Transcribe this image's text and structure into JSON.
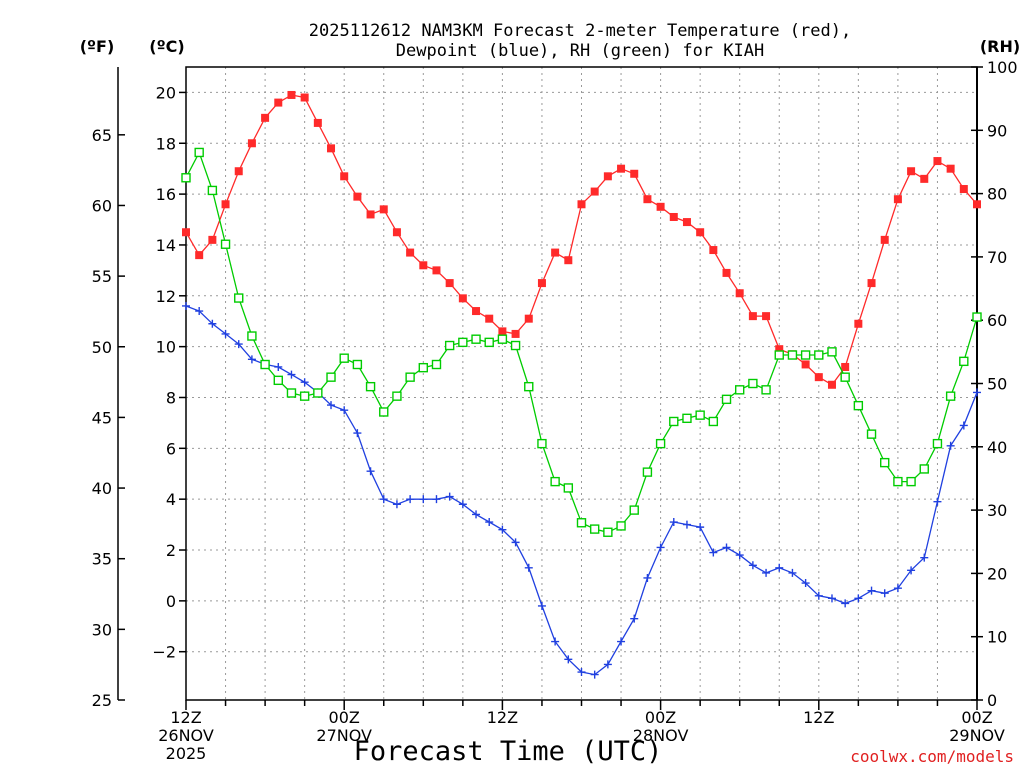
{
  "title_line1": "2025112612 NAM3KM Forecast 2-meter Temperature (red),",
  "title_line2": "Dewpoint (blue), RH (green) for KIAH",
  "unit_f": "(ºF)",
  "unit_c": "(ºC)",
  "unit_rh": "(RH)",
  "xlabel": "Forecast Time (UTC)",
  "credit": "coolwx.com/models",
  "colors": {
    "temp": "#ff2a2a",
    "dewpoint": "#2040e0",
    "rh": "#00cc00",
    "credit": "#e02020"
  },
  "chart_data": {
    "type": "line",
    "title": "2025112612 NAM3KM Forecast 2-meter Temperature (red), Dewpoint (blue), RH (green) for KIAH",
    "xlabel": "Forecast Time (UTC)",
    "x_hours": [
      0,
      1,
      2,
      3,
      4,
      5,
      6,
      7,
      8,
      9,
      10,
      11,
      12,
      13,
      14,
      15,
      16,
      17,
      18,
      19,
      20,
      21,
      22,
      23,
      24,
      25,
      26,
      27,
      28,
      29,
      30,
      31,
      32,
      33,
      34,
      35,
      36,
      37,
      38,
      39,
      40,
      41,
      42,
      43,
      44,
      45,
      46,
      47,
      48,
      49,
      50,
      51,
      52,
      53,
      54,
      55,
      56,
      57,
      58,
      59,
      60
    ],
    "xlim": [
      0,
      60
    ],
    "x_ticks": [
      {
        "hour": 0,
        "lines": [
          "12Z",
          "26NOV",
          "2025"
        ]
      },
      {
        "hour": 12,
        "lines": [
          "00Z",
          "27NOV"
        ]
      },
      {
        "hour": 24,
        "lines": [
          "12Z"
        ]
      },
      {
        "hour": 36,
        "lines": [
          "00Z",
          "28NOV"
        ]
      },
      {
        "hour": 48,
        "lines": [
          "12Z"
        ]
      },
      {
        "hour": 60,
        "lines": [
          "00Z",
          "29NOV"
        ]
      }
    ],
    "y_left_c": {
      "label": "(ºC)",
      "lim": [
        -3.9,
        21
      ],
      "ticks": [
        "20",
        "18",
        "16",
        "14",
        "12",
        "10",
        "8",
        "6",
        "4",
        "2",
        "0",
        "−2"
      ]
    },
    "y_left_f": {
      "label": "(ºF)",
      "lim": [
        25,
        69.8
      ],
      "ticks": [
        "65",
        "60",
        "55",
        "50",
        "45",
        "40",
        "35",
        "30",
        "25"
      ]
    },
    "y_right_rh": {
      "label": "(RH)",
      "lim": [
        0,
        100
      ],
      "ticks": [
        "100",
        "90",
        "80",
        "70",
        "60",
        "50",
        "40",
        "30",
        "20",
        "10",
        "0"
      ]
    },
    "series": [
      {
        "name": "Temperature",
        "units": "°C",
        "color": "#ff2a2a",
        "marker": "filled-square",
        "values": [
          14.5,
          13.6,
          14.2,
          15.6,
          16.9,
          18.0,
          19.0,
          19.6,
          19.9,
          19.8,
          18.8,
          17.8,
          16.7,
          15.9,
          15.2,
          15.4,
          14.5,
          13.7,
          13.2,
          13.0,
          12.5,
          11.9,
          11.4,
          11.1,
          10.6,
          10.5,
          11.1,
          12.5,
          13.7,
          13.4,
          15.6,
          16.1,
          16.7,
          17.0,
          16.8,
          15.8,
          15.5,
          15.1,
          14.9,
          14.5,
          13.8,
          12.9,
          12.1,
          11.2,
          11.2,
          9.9,
          9.7,
          9.3,
          8.8,
          8.5,
          9.2,
          10.9,
          12.5,
          14.2,
          15.8,
          16.9,
          16.6,
          17.3,
          17.0,
          16.2,
          15.6
        ]
      },
      {
        "name": "Dewpoint",
        "units": "°C",
        "color": "#2040e0",
        "marker": "plus",
        "values": [
          11.6,
          11.4,
          10.9,
          10.5,
          10.1,
          9.5,
          9.3,
          9.2,
          8.9,
          8.6,
          8.2,
          7.7,
          7.5,
          6.6,
          5.1,
          4.0,
          3.8,
          4.0,
          4.0,
          4.0,
          4.1,
          3.8,
          3.4,
          3.1,
          2.8,
          2.3,
          1.3,
          -0.2,
          -1.6,
          -2.3,
          -2.8,
          -2.9,
          -2.5,
          -1.6,
          -0.7,
          0.9,
          2.1,
          3.1,
          3.0,
          2.9,
          1.9,
          2.1,
          1.8,
          1.4,
          1.1,
          1.3,
          1.1,
          0.7,
          0.2,
          0.1,
          -0.1,
          0.1,
          0.4,
          0.3,
          0.5,
          1.2,
          1.7,
          3.9,
          6.1,
          6.9,
          8.2
        ]
      },
      {
        "name": "RH",
        "units": "%",
        "color": "#00cc00",
        "marker": "open-square",
        "values": [
          82.5,
          86.5,
          80.5,
          72.0,
          63.5,
          57.5,
          53.0,
          50.5,
          48.5,
          48.0,
          48.5,
          51.0,
          54.0,
          53.0,
          49.5,
          45.5,
          48.0,
          51.0,
          52.5,
          53.0,
          56.0,
          56.5,
          57.0,
          56.5,
          57.0,
          56.0,
          49.5,
          40.5,
          34.5,
          33.5,
          28.0,
          27.0,
          26.5,
          27.5,
          30.0,
          36.0,
          40.5,
          44.0,
          44.5,
          45.0,
          44.0,
          47.5,
          49.0,
          50.0,
          49.0,
          54.5,
          54.5,
          54.5,
          54.5,
          55.0,
          51.0,
          46.5,
          42.0,
          37.5,
          34.5,
          34.5,
          36.5,
          40.5,
          48.0,
          53.5,
          60.5
        ]
      }
    ]
  }
}
